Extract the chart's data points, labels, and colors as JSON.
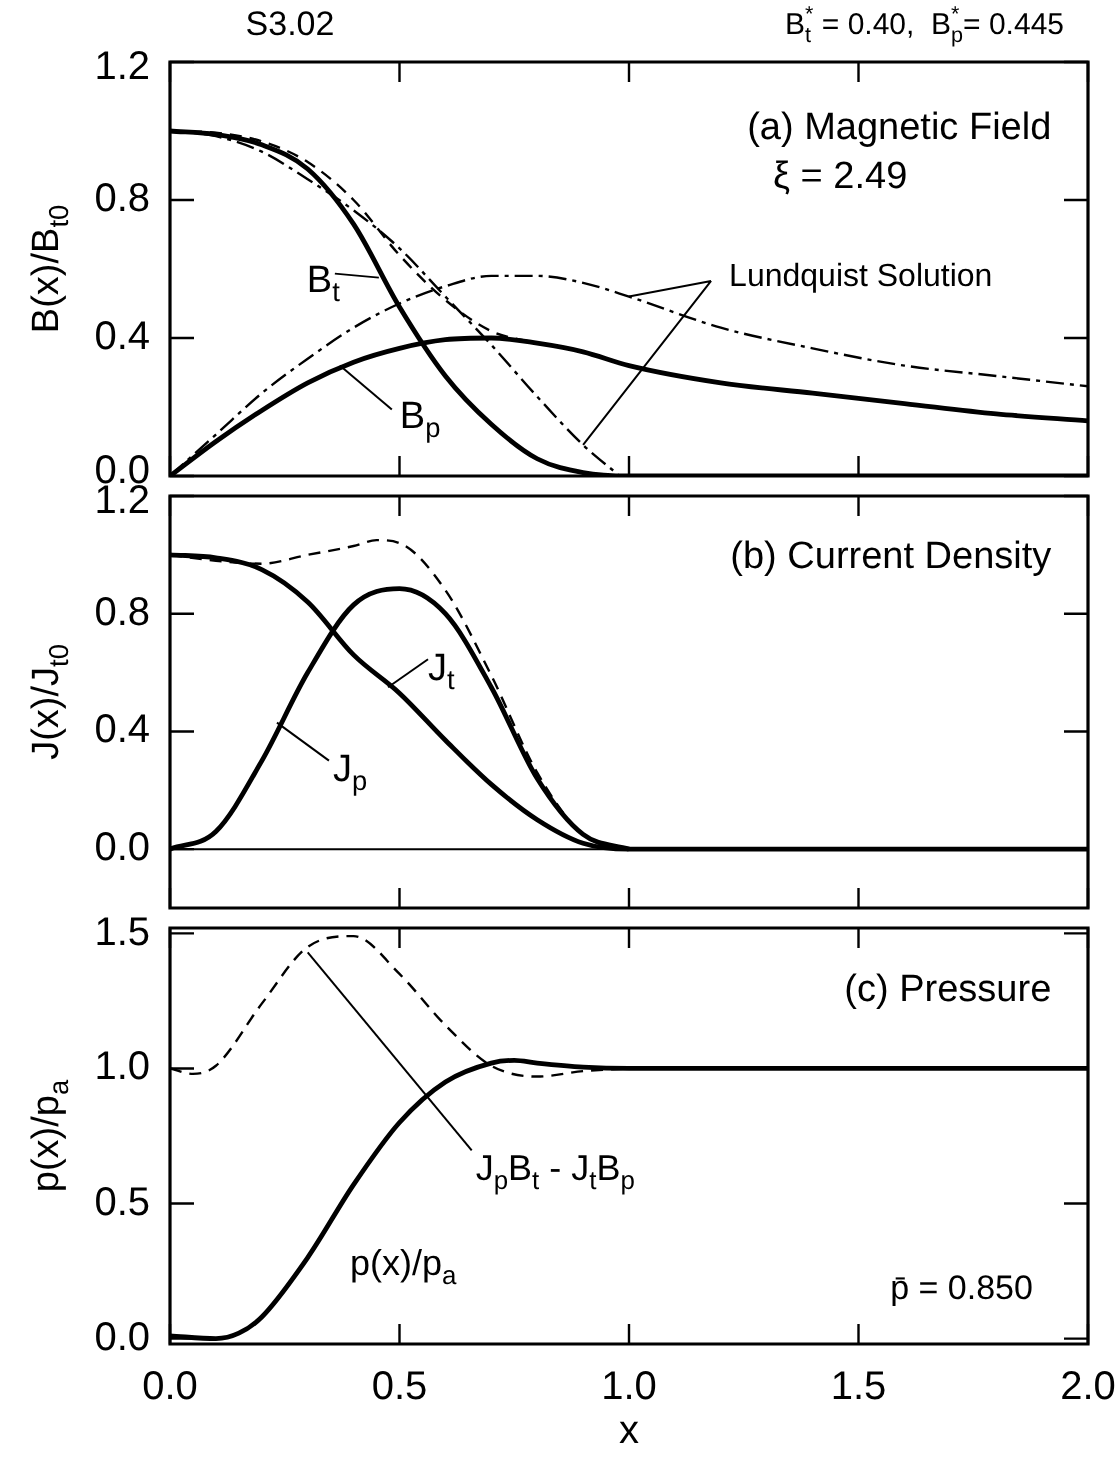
{
  "chart_data": [
    {
      "type": "line",
      "title": "S3.02",
      "subtitle": "B$_{t}$$^{*}$ = 0.40,  B$_{p}$$^{*}$= 0.445",
      "ylabel": "B(x)/B$_{t0}$",
      "xlim": [
        0,
        2
      ],
      "ylim": [
        0,
        1.2
      ],
      "xticks": [
        {
          "value": 0,
          "label": null
        },
        {
          "value": 0.5,
          "label": null
        },
        {
          "value": 1,
          "label": null
        },
        {
          "value": 1.5,
          "label": null
        },
        {
          "value": 2,
          "label": null
        }
      ],
      "yticks": [
        {
          "value": 0,
          "label": "0.0"
        },
        {
          "value": 0.4,
          "label": "0.4"
        },
        {
          "value": 0.8,
          "label": "0.8"
        },
        {
          "value": 1.2,
          "label": "1.2"
        }
      ],
      "tick_labels": "y",
      "marker": "none",
      "annotations": [
        "(a) Magnetic Field",
        "ξ = 2.49",
        {
          "text": "B$_{t}$",
          "x": 0.455,
          "y": 0.575
        },
        {
          "text": "B$_{p}$",
          "x": 0.37,
          "y": 0.32
        },
        {
          "text": "Lundquist Solution",
          "x": 0.9,
          "y": 0.09
        }
      ],
      "series": [
        {
          "color": "#000000",
          "line_style": "solid",
          "x": [
            0,
            0.1,
            0.2,
            0.3,
            0.4,
            0.5,
            0.6,
            0.7,
            0.8,
            0.9,
            1.0,
            2.0
          ],
          "values": [
            1.0,
            0.99,
            0.96,
            0.89,
            0.73,
            0.49,
            0.29,
            0.15,
            0.05,
            0.01,
            0,
            0
          ]
        },
        {
          "color": "#000000",
          "line_style": "solid",
          "x": [
            0,
            0.1,
            0.2,
            0.3,
            0.4,
            0.5,
            0.6,
            0.7,
            0.8,
            0.9,
            1.0,
            1.2,
            1.4,
            1.6,
            1.8,
            2.0
          ],
          "values": [
            0,
            0.1,
            0.19,
            0.27,
            0.33,
            0.37,
            0.395,
            0.4,
            0.385,
            0.36,
            0.32,
            0.27,
            0.24,
            0.21,
            0.18,
            0.16
          ]
        },
        {
          "color": "#000000",
          "line_style": "dashed",
          "x": [
            0,
            0.1,
            0.2,
            0.3,
            0.4,
            0.5,
            0.6,
            0.7,
            0.8
          ],
          "values": [
            1.0,
            0.995,
            0.97,
            0.91,
            0.8,
            0.64,
            0.51,
            0.42,
            0.385
          ]
        },
        {
          "color": "#000000",
          "line_style": "dashdot",
          "x": [
            0,
            0.1,
            0.2,
            0.3,
            0.4,
            0.5,
            0.6,
            0.7,
            0.8,
            0.9,
            0.98
          ],
          "values": [
            1.0,
            0.985,
            0.94,
            0.86,
            0.77,
            0.66,
            0.52,
            0.38,
            0.23,
            0.09,
            0
          ]
        },
        {
          "color": "#000000",
          "line_style": "dashdot",
          "x": [
            0,
            0.1,
            0.2,
            0.3,
            0.4,
            0.5,
            0.6,
            0.7,
            0.8,
            0.9,
            1.0,
            1.2,
            1.4,
            1.6,
            1.8,
            2.0
          ],
          "values": [
            0,
            0.12,
            0.24,
            0.34,
            0.43,
            0.5,
            0.55,
            0.58,
            0.58,
            0.56,
            0.52,
            0.43,
            0.37,
            0.32,
            0.29,
            0.26
          ]
        }
      ]
    },
    {
      "type": "line",
      "ylabel": "J(x)/J$_{t0}$",
      "xlim": [
        0,
        2
      ],
      "ylim": [
        -0.2,
        1.2
      ],
      "xticks": [
        {
          "value": 0,
          "label": null
        },
        {
          "value": 0.5,
          "label": null
        },
        {
          "value": 1,
          "label": null
        },
        {
          "value": 1.5,
          "label": null
        },
        {
          "value": 2,
          "label": null
        }
      ],
      "yticks": [
        {
          "value": 0,
          "label": "0.0"
        },
        {
          "value": 0.4,
          "label": "0.4"
        },
        {
          "value": 0.8,
          "label": "0.8"
        },
        {
          "value": 1.2,
          "label": "1.2"
        }
      ],
      "tick_labels": "y",
      "marker": "none",
      "ref_lines": [
        {
          "axis": "y",
          "value": 0,
          "color": "#000000"
        }
      ],
      "annotations": [
        "(b) Current Density",
        {
          "text": "J$_{t}$",
          "x": 0.475,
          "y": 0.55
        },
        {
          "text": "J$_{p}$",
          "x": 0.233,
          "y": 0.43
        }
      ],
      "series": [
        {
          "color": "#000000",
          "line_style": "solid",
          "x": [
            0,
            0.1,
            0.2,
            0.3,
            0.4,
            0.5,
            0.6,
            0.7,
            0.8,
            0.9,
            1.0,
            2.0
          ],
          "values": [
            1.0,
            0.99,
            0.95,
            0.84,
            0.66,
            0.53,
            0.37,
            0.22,
            0.1,
            0.02,
            0,
            0
          ]
        },
        {
          "color": "#000000",
          "line_style": "solid",
          "x": [
            0,
            0.1,
            0.2,
            0.3,
            0.4,
            0.5,
            0.6,
            0.7,
            0.8,
            0.9,
            1.0
          ],
          "values": [
            0,
            0.06,
            0.3,
            0.6,
            0.83,
            0.885,
            0.8,
            0.55,
            0.24,
            0.05,
            0
          ]
        },
        {
          "color": "#000000",
          "line_style": "dashed",
          "x": [
            0,
            0.1,
            0.2,
            0.3,
            0.4,
            0.45,
            0.5,
            0.6,
            0.7,
            0.8,
            0.9,
            1.0
          ],
          "values": [
            1.0,
            0.98,
            0.97,
            1.0,
            1.03,
            1.05,
            1.04,
            0.88,
            0.59,
            0.26,
            0.05,
            0
          ]
        }
      ]
    },
    {
      "type": "line",
      "xlabel": "x",
      "ylabel": "p(x)/p$_{a}$",
      "xlim": [
        0,
        2
      ],
      "ylim": [
        -0.02,
        1.52
      ],
      "xticks": [
        {
          "value": 0,
          "label": "0.0"
        },
        {
          "value": 0.5,
          "label": "0.5"
        },
        {
          "value": 1,
          "label": "1.0"
        },
        {
          "value": 1.5,
          "label": "1.5"
        },
        {
          "value": 2,
          "label": "2.0"
        }
      ],
      "yticks": [
        {
          "value": 0,
          "label": "0.0"
        },
        {
          "value": 0.5,
          "label": "0.5"
        },
        {
          "value": 1,
          "label": "1.0"
        },
        {
          "value": 1.5,
          "label": "1.5"
        }
      ],
      "marker": "none",
      "annotations": [
        "(c) Pressure",
        "p(x)/p$_{a}$",
        "p̄ = 0.850",
        {
          "text": "J$_{p}$B$_{t}$ - J$_{t}$B$_{p}$",
          "x": 0.3,
          "y": 1.43
        }
      ],
      "series": [
        {
          "color": "#000000",
          "line_style": "solid",
          "x": [
            0,
            0.1,
            0.15,
            0.2,
            0.3,
            0.4,
            0.5,
            0.6,
            0.7,
            0.75,
            0.8,
            0.9,
            1.0,
            2.0
          ],
          "values": [
            0.01,
            0,
            0.02,
            0.08,
            0.3,
            0.57,
            0.8,
            0.95,
            1.02,
            1.03,
            1.02,
            1.005,
            1.0,
            1.0
          ]
        },
        {
          "color": "#000000",
          "line_style": "dashed",
          "x": [
            0,
            0.05,
            0.1,
            0.2,
            0.3,
            0.4,
            0.5,
            0.6,
            0.7,
            0.8,
            0.9,
            1.0
          ],
          "values": [
            1.0,
            0.98,
            1.01,
            1.24,
            1.45,
            1.49,
            1.35,
            1.16,
            1.01,
            0.97,
            0.99,
            1.0
          ]
        }
      ]
    }
  ]
}
